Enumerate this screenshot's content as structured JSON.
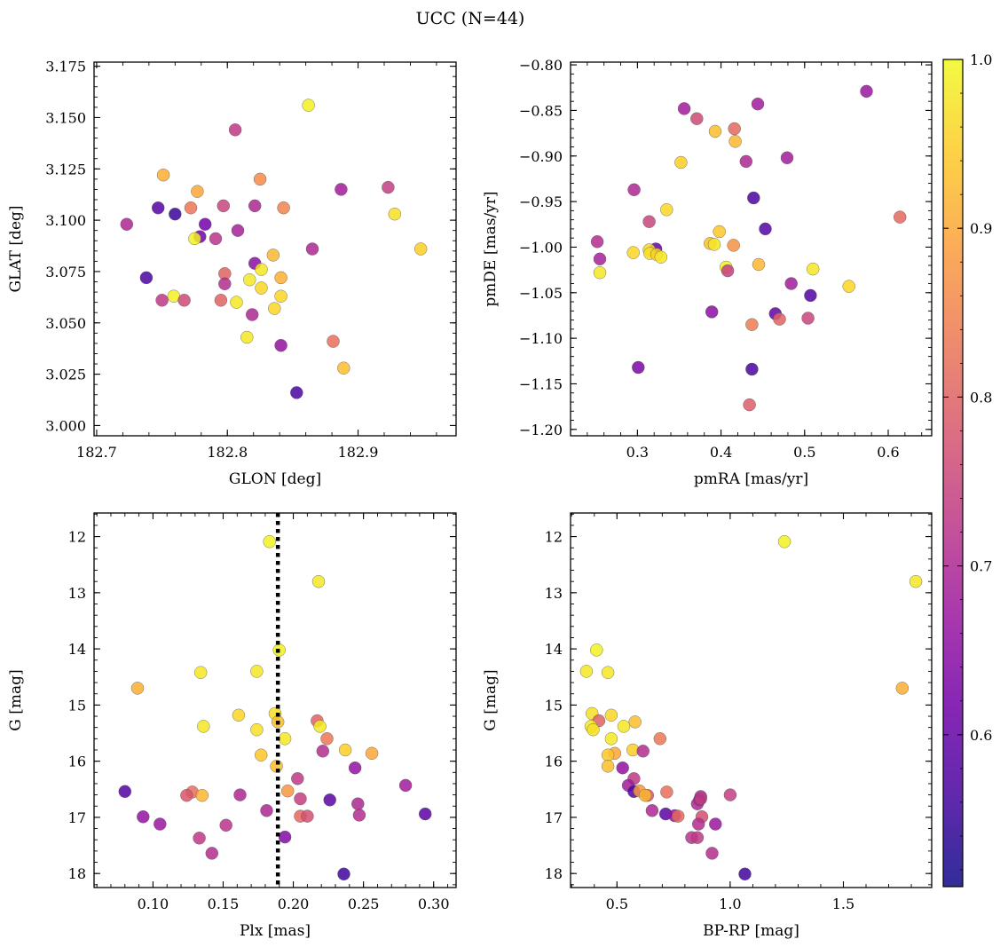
{
  "title": "UCC (N=44)",
  "colorbar": {
    "cmap": "plasma",
    "range": [
      0.51,
      1.0
    ],
    "ticks": [
      0.6,
      0.7,
      0.8,
      0.9,
      1.0
    ],
    "tick_labels": [
      "0.6",
      "0.7",
      "0.8",
      "0.9",
      "1.0"
    ]
  },
  "chart_data": [
    {
      "type": "scatter",
      "xlabel": "GLON [deg]",
      "ylabel": "GLAT [deg]",
      "xlim": [
        182.698,
        182.975
      ],
      "ylim": [
        2.995,
        3.177
      ],
      "xticks": [
        182.7,
        182.8,
        182.9
      ],
      "xtick_labels": [
        "182.7",
        "182.8",
        "182.9"
      ],
      "yticks": [
        3.0,
        3.025,
        3.05,
        3.075,
        3.1,
        3.125,
        3.15,
        3.175
      ],
      "ytick_labels": [
        "3.000",
        "3.025",
        "3.050",
        "3.075",
        "3.100",
        "3.125",
        "3.150",
        "3.175"
      ],
      "points": [
        {
          "x": 182.862,
          "y": 3.156,
          "c": 0.99
        },
        {
          "x": 182.806,
          "y": 3.144,
          "c": 0.73
        },
        {
          "x": 182.751,
          "y": 3.122,
          "c": 0.91
        },
        {
          "x": 182.825,
          "y": 3.12,
          "c": 0.86
        },
        {
          "x": 182.923,
          "y": 3.116,
          "c": 0.74
        },
        {
          "x": 182.887,
          "y": 3.115,
          "c": 0.68
        },
        {
          "x": 182.777,
          "y": 3.114,
          "c": 0.9
        },
        {
          "x": 182.797,
          "y": 3.107,
          "c": 0.75
        },
        {
          "x": 182.821,
          "y": 3.107,
          "c": 0.7
        },
        {
          "x": 182.747,
          "y": 3.106,
          "c": 0.58
        },
        {
          "x": 182.772,
          "y": 3.106,
          "c": 0.83
        },
        {
          "x": 182.843,
          "y": 3.106,
          "c": 0.85
        },
        {
          "x": 182.928,
          "y": 3.103,
          "c": 0.97
        },
        {
          "x": 182.76,
          "y": 3.103,
          "c": 0.55
        },
        {
          "x": 182.723,
          "y": 3.098,
          "c": 0.7
        },
        {
          "x": 182.783,
          "y": 3.098,
          "c": 0.62
        },
        {
          "x": 182.808,
          "y": 3.095,
          "c": 0.69
        },
        {
          "x": 182.779,
          "y": 3.092,
          "c": 0.62
        },
        {
          "x": 182.775,
          "y": 3.091,
          "c": 0.99
        },
        {
          "x": 182.791,
          "y": 3.091,
          "c": 0.72
        },
        {
          "x": 182.865,
          "y": 3.086,
          "c": 0.7
        },
        {
          "x": 182.948,
          "y": 3.086,
          "c": 0.95
        },
        {
          "x": 182.835,
          "y": 3.083,
          "c": 0.92
        },
        {
          "x": 182.821,
          "y": 3.079,
          "c": 0.65
        },
        {
          "x": 182.826,
          "y": 3.076,
          "c": 0.98
        },
        {
          "x": 182.798,
          "y": 3.074,
          "c": 0.8
        },
        {
          "x": 182.738,
          "y": 3.072,
          "c": 0.57
        },
        {
          "x": 182.841,
          "y": 3.072,
          "c": 0.91
        },
        {
          "x": 182.817,
          "y": 3.071,
          "c": 0.98
        },
        {
          "x": 182.798,
          "y": 3.069,
          "c": 0.71
        },
        {
          "x": 182.826,
          "y": 3.067,
          "c": 0.96
        },
        {
          "x": 182.759,
          "y": 3.063,
          "c": 0.99
        },
        {
          "x": 182.841,
          "y": 3.063,
          "c": 0.96
        },
        {
          "x": 182.75,
          "y": 3.061,
          "c": 0.73
        },
        {
          "x": 182.767,
          "y": 3.061,
          "c": 0.76
        },
        {
          "x": 182.795,
          "y": 3.061,
          "c": 0.8
        },
        {
          "x": 182.807,
          "y": 3.06,
          "c": 0.98
        },
        {
          "x": 182.836,
          "y": 3.057,
          "c": 0.96
        },
        {
          "x": 182.819,
          "y": 3.054,
          "c": 0.7
        },
        {
          "x": 182.815,
          "y": 3.043,
          "c": 0.98
        },
        {
          "x": 182.881,
          "y": 3.041,
          "c": 0.82
        },
        {
          "x": 182.841,
          "y": 3.039,
          "c": 0.66
        },
        {
          "x": 182.889,
          "y": 3.028,
          "c": 0.93
        },
        {
          "x": 182.853,
          "y": 3.016,
          "c": 0.57
        }
      ]
    },
    {
      "type": "scatter",
      "xlabel": "pmRA [mas/yr]",
      "ylabel": "pmDE [mas/yr]",
      "xlim": [
        0.22,
        0.652
      ],
      "ylim": [
        -1.207,
        -0.797
      ],
      "xticks": [
        0.3,
        0.4,
        0.5,
        0.6
      ],
      "xtick_labels": [
        "0.3",
        "0.4",
        "0.5",
        "0.6"
      ],
      "yticks": [
        -1.2,
        -1.15,
        -1.1,
        -1.05,
        -1.0,
        -0.95,
        -0.9,
        -0.85,
        -0.8
      ],
      "ytick_labels": [
        "−1.20",
        "−1.15",
        "−1.10",
        "−1.05",
        "−1.00",
        "−0.95",
        "−0.90",
        "−0.85",
        "−0.80"
      ],
      "points": [
        {
          "x": 0.574,
          "y": -0.829,
          "c": 0.67
        },
        {
          "x": 0.356,
          "y": -0.848,
          "c": 0.68
        },
        {
          "x": 0.444,
          "y": -0.843,
          "c": 0.68
        },
        {
          "x": 0.371,
          "y": -0.859,
          "c": 0.76
        },
        {
          "x": 0.416,
          "y": -0.87,
          "c": 0.81
        },
        {
          "x": 0.393,
          "y": -0.873,
          "c": 0.93
        },
        {
          "x": 0.417,
          "y": -0.884,
          "c": 0.92
        },
        {
          "x": 0.352,
          "y": -0.907,
          "c": 0.95
        },
        {
          "x": 0.479,
          "y": -0.902,
          "c": 0.68
        },
        {
          "x": 0.43,
          "y": -0.906,
          "c": 0.7
        },
        {
          "x": 0.296,
          "y": -0.937,
          "c": 0.7
        },
        {
          "x": 0.439,
          "y": -0.946,
          "c": 0.57
        },
        {
          "x": 0.335,
          "y": -0.959,
          "c": 0.96
        },
        {
          "x": 0.314,
          "y": -0.972,
          "c": 0.75
        },
        {
          "x": 0.614,
          "y": -0.967,
          "c": 0.81
        },
        {
          "x": 0.453,
          "y": -0.98,
          "c": 0.58
        },
        {
          "x": 0.398,
          "y": -0.983,
          "c": 0.94
        },
        {
          "x": 0.252,
          "y": -0.994,
          "c": 0.71
        },
        {
          "x": 0.387,
          "y": -0.996,
          "c": 0.93
        },
        {
          "x": 0.392,
          "y": -0.997,
          "c": 0.98
        },
        {
          "x": 0.415,
          "y": -0.998,
          "c": 0.87
        },
        {
          "x": 0.322,
          "y": -1.002,
          "c": 0.6
        },
        {
          "x": 0.314,
          "y": -1.003,
          "c": 0.96
        },
        {
          "x": 0.295,
          "y": -1.006,
          "c": 0.96
        },
        {
          "x": 0.315,
          "y": -1.007,
          "c": 0.97
        },
        {
          "x": 0.323,
          "y": -1.008,
          "c": 0.95
        },
        {
          "x": 0.328,
          "y": -1.011,
          "c": 0.98
        },
        {
          "x": 0.255,
          "y": -1.013,
          "c": 0.69
        },
        {
          "x": 0.445,
          "y": -1.019,
          "c": 0.92
        },
        {
          "x": 0.406,
          "y": -1.022,
          "c": 0.99
        },
        {
          "x": 0.51,
          "y": -1.024,
          "c": 0.98
        },
        {
          "x": 0.408,
          "y": -1.026,
          "c": 0.74
        },
        {
          "x": 0.255,
          "y": -1.028,
          "c": 0.98
        },
        {
          "x": 0.484,
          "y": -1.04,
          "c": 0.68
        },
        {
          "x": 0.553,
          "y": -1.043,
          "c": 0.96
        },
        {
          "x": 0.507,
          "y": -1.053,
          "c": 0.58
        },
        {
          "x": 0.389,
          "y": -1.071,
          "c": 0.65
        },
        {
          "x": 0.465,
          "y": -1.073,
          "c": 0.6
        },
        {
          "x": 0.504,
          "y": -1.078,
          "c": 0.75
        },
        {
          "x": 0.47,
          "y": -1.079,
          "c": 0.8
        },
        {
          "x": 0.437,
          "y": -1.085,
          "c": 0.84
        },
        {
          "x": 0.301,
          "y": -1.132,
          "c": 0.63
        },
        {
          "x": 0.437,
          "y": -1.134,
          "c": 0.57
        },
        {
          "x": 0.434,
          "y": -1.173,
          "c": 0.79
        }
      ]
    },
    {
      "type": "scatter",
      "xlabel": "Plx [mas]",
      "ylabel": "G [mag]",
      "xlim": [
        0.058,
        0.316
      ],
      "ylim": [
        18.25,
        11.58
      ],
      "y_inverted": true,
      "vline": {
        "x": 0.189,
        "style": "dotted"
      },
      "xticks": [
        0.1,
        0.15,
        0.2,
        0.25,
        0.3
      ],
      "xtick_labels": [
        "0.10",
        "0.15",
        "0.20",
        "0.25",
        "0.30"
      ],
      "yticks": [
        12,
        13,
        14,
        15,
        16,
        17,
        18
      ],
      "ytick_labels": [
        "12",
        "13",
        "14",
        "15",
        "16",
        "17",
        "18"
      ],
      "points": [
        {
          "x": 0.183,
          "y": 12.09,
          "c": 0.99
        },
        {
          "x": 0.218,
          "y": 12.8,
          "c": 0.98
        },
        {
          "x": 0.19,
          "y": 14.02,
          "c": 0.99
        },
        {
          "x": 0.134,
          "y": 14.42,
          "c": 0.98
        },
        {
          "x": 0.174,
          "y": 14.4,
          "c": 0.98
        },
        {
          "x": 0.089,
          "y": 14.7,
          "c": 0.91
        },
        {
          "x": 0.161,
          "y": 15.18,
          "c": 0.96
        },
        {
          "x": 0.187,
          "y": 15.15,
          "c": 0.97
        },
        {
          "x": 0.189,
          "y": 15.3,
          "c": 0.93
        },
        {
          "x": 0.217,
          "y": 15.28,
          "c": 0.8
        },
        {
          "x": 0.219,
          "y": 15.38,
          "c": 0.98
        },
        {
          "x": 0.136,
          "y": 15.38,
          "c": 0.98
        },
        {
          "x": 0.174,
          "y": 15.44,
          "c": 0.97
        },
        {
          "x": 0.194,
          "y": 15.6,
          "c": 0.98
        },
        {
          "x": 0.224,
          "y": 15.6,
          "c": 0.83
        },
        {
          "x": 0.237,
          "y": 15.8,
          "c": 0.95
        },
        {
          "x": 0.221,
          "y": 15.82,
          "c": 0.71
        },
        {
          "x": 0.256,
          "y": 15.86,
          "c": 0.9
        },
        {
          "x": 0.177,
          "y": 15.89,
          "c": 0.94
        },
        {
          "x": 0.188,
          "y": 16.09,
          "c": 0.93
        },
        {
          "x": 0.244,
          "y": 16.12,
          "c": 0.66
        },
        {
          "x": 0.203,
          "y": 16.31,
          "c": 0.73
        },
        {
          "x": 0.28,
          "y": 16.43,
          "c": 0.68
        },
        {
          "x": 0.08,
          "y": 16.54,
          "c": 0.58
        },
        {
          "x": 0.196,
          "y": 16.53,
          "c": 0.88
        },
        {
          "x": 0.128,
          "y": 16.55,
          "c": 0.82
        },
        {
          "x": 0.124,
          "y": 16.61,
          "c": 0.78
        },
        {
          "x": 0.135,
          "y": 16.61,
          "c": 0.92
        },
        {
          "x": 0.162,
          "y": 16.6,
          "c": 0.7
        },
        {
          "x": 0.205,
          "y": 16.67,
          "c": 0.74
        },
        {
          "x": 0.226,
          "y": 16.69,
          "c": 0.59
        },
        {
          "x": 0.246,
          "y": 16.76,
          "c": 0.7
        },
        {
          "x": 0.181,
          "y": 16.88,
          "c": 0.7
        },
        {
          "x": 0.294,
          "y": 16.94,
          "c": 0.59
        },
        {
          "x": 0.093,
          "y": 16.99,
          "c": 0.66
        },
        {
          "x": 0.205,
          "y": 16.98,
          "c": 0.81
        },
        {
          "x": 0.21,
          "y": 16.98,
          "c": 0.77
        },
        {
          "x": 0.247,
          "y": 16.96,
          "c": 0.71
        },
        {
          "x": 0.105,
          "y": 17.12,
          "c": 0.67
        },
        {
          "x": 0.152,
          "y": 17.14,
          "c": 0.72
        },
        {
          "x": 0.133,
          "y": 17.37,
          "c": 0.73
        },
        {
          "x": 0.194,
          "y": 17.35,
          "c": 0.64
        },
        {
          "x": 0.142,
          "y": 17.64,
          "c": 0.71
        },
        {
          "x": 0.236,
          "y": 18.01,
          "c": 0.56
        }
      ]
    },
    {
      "type": "scatter",
      "xlabel": "BP-RP [mag]",
      "ylabel": "G [mag]",
      "xlim": [
        0.295,
        1.89
      ],
      "ylim": [
        18.25,
        11.58
      ],
      "y_inverted": true,
      "xticks": [
        0.5,
        1.0,
        1.5
      ],
      "xtick_labels": [
        "0.5",
        "1.0",
        "1.5"
      ],
      "yticks": [
        12,
        13,
        14,
        15,
        16,
        17,
        18
      ],
      "ytick_labels": [
        "12",
        "13",
        "14",
        "15",
        "16",
        "17",
        "18"
      ],
      "points": [
        {
          "x": 1.24,
          "y": 12.09,
          "c": 0.99
        },
        {
          "x": 1.82,
          "y": 12.8,
          "c": 0.98
        },
        {
          "x": 0.41,
          "y": 14.02,
          "c": 0.99
        },
        {
          "x": 0.365,
          "y": 14.4,
          "c": 0.98
        },
        {
          "x": 0.46,
          "y": 14.42,
          "c": 0.98
        },
        {
          "x": 1.76,
          "y": 14.7,
          "c": 0.91
        },
        {
          "x": 0.39,
          "y": 15.15,
          "c": 0.97
        },
        {
          "x": 0.475,
          "y": 15.18,
          "c": 0.96
        },
        {
          "x": 0.42,
          "y": 15.28,
          "c": 0.8
        },
        {
          "x": 0.58,
          "y": 15.3,
          "c": 0.93
        },
        {
          "x": 0.385,
          "y": 15.38,
          "c": 0.98
        },
        {
          "x": 0.53,
          "y": 15.38,
          "c": 0.98
        },
        {
          "x": 0.395,
          "y": 15.44,
          "c": 0.97
        },
        {
          "x": 0.475,
          "y": 15.6,
          "c": 0.98
        },
        {
          "x": 0.69,
          "y": 15.6,
          "c": 0.83
        },
        {
          "x": 0.57,
          "y": 15.8,
          "c": 0.95
        },
        {
          "x": 0.615,
          "y": 15.82,
          "c": 0.71
        },
        {
          "x": 0.49,
          "y": 15.86,
          "c": 0.9
        },
        {
          "x": 0.46,
          "y": 15.89,
          "c": 0.94
        },
        {
          "x": 0.46,
          "y": 16.09,
          "c": 0.93
        },
        {
          "x": 0.525,
          "y": 16.12,
          "c": 0.66
        },
        {
          "x": 0.575,
          "y": 16.31,
          "c": 0.73
        },
        {
          "x": 0.55,
          "y": 16.43,
          "c": 0.68
        },
        {
          "x": 0.575,
          "y": 16.54,
          "c": 0.58
        },
        {
          "x": 0.6,
          "y": 16.53,
          "c": 0.88
        },
        {
          "x": 0.72,
          "y": 16.55,
          "c": 0.82
        },
        {
          "x": 0.635,
          "y": 16.61,
          "c": 0.78
        },
        {
          "x": 0.625,
          "y": 16.61,
          "c": 0.92
        },
        {
          "x": 0.87,
          "y": 16.63,
          "c": 0.7
        },
        {
          "x": 1.0,
          "y": 16.6,
          "c": 0.74
        },
        {
          "x": 0.865,
          "y": 16.69,
          "c": 0.59
        },
        {
          "x": 0.855,
          "y": 16.76,
          "c": 0.7
        },
        {
          "x": 0.655,
          "y": 16.88,
          "c": 0.7
        },
        {
          "x": 0.715,
          "y": 16.94,
          "c": 0.59
        },
        {
          "x": 0.755,
          "y": 16.97,
          "c": 0.66
        },
        {
          "x": 0.77,
          "y": 16.98,
          "c": 0.81
        },
        {
          "x": 0.875,
          "y": 16.99,
          "c": 0.77
        },
        {
          "x": 0.86,
          "y": 17.12,
          "c": 0.71
        },
        {
          "x": 0.935,
          "y": 17.12,
          "c": 0.67
        },
        {
          "x": 0.83,
          "y": 17.36,
          "c": 0.72
        },
        {
          "x": 0.855,
          "y": 17.36,
          "c": 0.73
        },
        {
          "x": 0.92,
          "y": 17.64,
          "c": 0.71
        },
        {
          "x": 1.065,
          "y": 18.01,
          "c": 0.56
        },
        {
          "x": 0.87,
          "y": 16.67,
          "c": 0.74
        }
      ]
    }
  ]
}
